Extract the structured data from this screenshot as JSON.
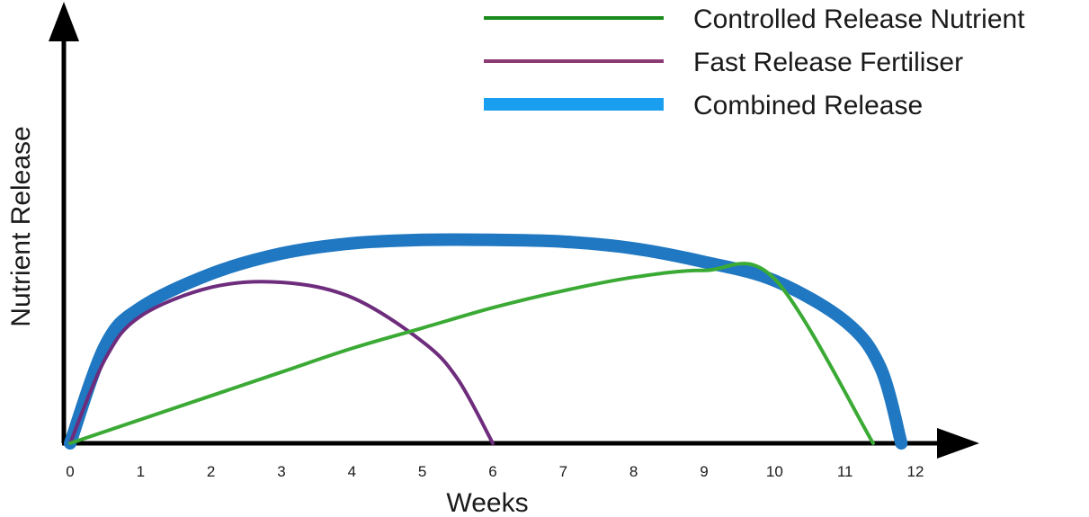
{
  "chart_data": {
    "type": "line",
    "xlabel": "Weeks",
    "ylabel": "Nutrient Release",
    "x_ticks": [
      "0",
      "1",
      "2",
      "3",
      "4",
      "5",
      "6",
      "7",
      "8",
      "9",
      "10",
      "11",
      "12"
    ],
    "xlim": [
      0,
      12
    ],
    "ylim": [
      0,
      1.3
    ],
    "grid": false,
    "legend_position": "top-right",
    "series": [
      {
        "name": "Controlled Release Nutrient",
        "color": "#3aaa35",
        "x": [
          0,
          1,
          2,
          3,
          4,
          5,
          6,
          7,
          8,
          9,
          10,
          11.4
        ],
        "y": [
          0,
          0.14,
          0.28,
          0.42,
          0.56,
          0.68,
          0.8,
          0.9,
          0.98,
          1.02,
          0.97,
          0
        ]
      },
      {
        "name": "Fast Release Fertiliser",
        "color": "#6e2c7d",
        "x": [
          0,
          0.5,
          1,
          2,
          3,
          4,
          5,
          5.5,
          6
        ],
        "y": [
          0,
          0.5,
          0.75,
          0.92,
          0.95,
          0.86,
          0.6,
          0.38,
          0
        ]
      },
      {
        "name": "Combined Release",
        "color": "#1f78c1",
        "x": [
          0,
          0.5,
          1,
          2,
          3,
          4,
          5,
          6,
          7,
          8,
          9,
          10,
          11,
          11.5,
          11.8
        ],
        "y": [
          0,
          0.58,
          0.8,
          1.0,
          1.12,
          1.18,
          1.2,
          1.2,
          1.19,
          1.15,
          1.07,
          0.96,
          0.72,
          0.45,
          0
        ]
      }
    ],
    "legend": [
      {
        "label": "Controlled Release Nutrient",
        "color": "#1a8a1a",
        "stroke": 4
      },
      {
        "label": "Fast Release Fertiliser",
        "color": "#8b3a73",
        "stroke": 4
      },
      {
        "label": "Combined Release",
        "color": "#1a9ff0",
        "stroke": 14
      }
    ]
  }
}
